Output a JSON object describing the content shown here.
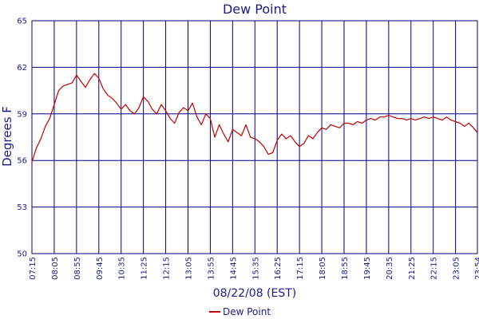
{
  "chart_data": {
    "type": "line",
    "title": "Dew Point",
    "xlabel": "08/22/08 (EST)",
    "ylabel": "Degrees F",
    "ylim": [
      50,
      65
    ],
    "y_ticks": [
      "50",
      "53",
      "56",
      "59",
      "62",
      "65"
    ],
    "y_tick_values": [
      50,
      53,
      56,
      59,
      62,
      65
    ],
    "x_ticks": [
      "07:15",
      "08:05",
      "08:55",
      "09:45",
      "10:35",
      "11:25",
      "12:15",
      "13:05",
      "13:55",
      "14:45",
      "15:35",
      "16:25",
      "17:15",
      "18:05",
      "18:55",
      "19:45",
      "20:35",
      "21:25",
      "22:15",
      "23:05",
      "23:54"
    ],
    "grid": true,
    "legend": "bottom",
    "colors": {
      "series": "#c00000",
      "grid": "#000080",
      "text": "#1a1a8c"
    },
    "series": [
      {
        "name": "Dew Point",
        "x": [
          "07:15",
          "07:25",
          "07:35",
          "07:45",
          "07:55",
          "08:05",
          "08:15",
          "08:25",
          "08:35",
          "08:45",
          "08:55",
          "09:05",
          "09:15",
          "09:25",
          "09:35",
          "09:45",
          "09:55",
          "10:05",
          "10:15",
          "10:25",
          "10:35",
          "10:45",
          "10:55",
          "11:05",
          "11:15",
          "11:25",
          "11:35",
          "11:45",
          "11:55",
          "12:05",
          "12:15",
          "12:25",
          "12:35",
          "12:45",
          "12:55",
          "13:05",
          "13:15",
          "13:25",
          "13:35",
          "13:45",
          "13:55",
          "14:05",
          "14:15",
          "14:25",
          "14:35",
          "14:45",
          "14:55",
          "15:05",
          "15:15",
          "15:25",
          "15:35",
          "15:45",
          "15:55",
          "16:05",
          "16:15",
          "16:25",
          "16:35",
          "16:45",
          "16:55",
          "17:05",
          "17:15",
          "17:25",
          "17:35",
          "17:45",
          "17:55",
          "18:05",
          "18:15",
          "18:25",
          "18:35",
          "18:45",
          "18:55",
          "19:05",
          "19:15",
          "19:25",
          "19:35",
          "19:45",
          "19:55",
          "20:05",
          "20:15",
          "20:25",
          "20:35",
          "20:45",
          "20:55",
          "21:05",
          "21:15",
          "21:25",
          "21:35",
          "21:45",
          "21:55",
          "22:05",
          "22:15",
          "22:25",
          "22:35",
          "22:45",
          "22:55",
          "23:05",
          "23:15",
          "23:25",
          "23:35",
          "23:45",
          "23:54"
        ],
        "values": [
          55.9,
          56.8,
          57.4,
          58.2,
          58.7,
          59.6,
          60.5,
          60.8,
          60.9,
          61.0,
          61.5,
          61.1,
          60.7,
          61.2,
          61.6,
          61.3,
          60.6,
          60.2,
          60.0,
          59.7,
          59.3,
          59.6,
          59.2,
          59.0,
          59.4,
          60.1,
          59.8,
          59.3,
          59.0,
          59.6,
          59.2,
          58.7,
          58.4,
          59.1,
          59.4,
          59.2,
          59.7,
          58.8,
          58.3,
          59.0,
          58.7,
          57.5,
          58.3,
          57.7,
          57.2,
          58.0,
          57.8,
          57.6,
          58.3,
          57.5,
          57.4,
          57.2,
          56.9,
          56.4,
          56.5,
          57.3,
          57.7,
          57.4,
          57.6,
          57.2,
          56.9,
          57.1,
          57.6,
          57.4,
          57.8,
          58.1,
          58.0,
          58.3,
          58.2,
          58.1,
          58.4,
          58.4,
          58.3,
          58.5,
          58.4,
          58.6,
          58.7,
          58.6,
          58.8,
          58.8,
          58.9,
          58.8,
          58.7,
          58.7,
          58.6,
          58.7,
          58.6,
          58.7,
          58.8,
          58.7,
          58.8,
          58.7,
          58.6,
          58.8,
          58.6,
          58.5,
          58.4,
          58.2,
          58.4,
          58.1,
          57.8
        ]
      }
    ]
  }
}
